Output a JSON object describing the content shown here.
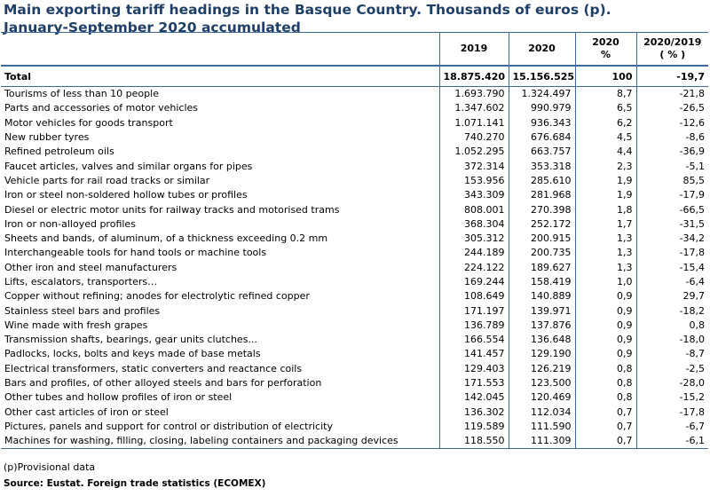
{
  "title": {
    "line1": "Main exporting tariff headings in the Basque Country. Thousands of euros (p).",
    "line2": "January-September 2020 accumulated"
  },
  "columns": {
    "c2019": "2019",
    "c2020": "2020",
    "pct_line1": "2020",
    "pct_line2": "%",
    "var_line1": "2020/2019",
    "var_line2": "( % )"
  },
  "total": {
    "label": "Total",
    "v2019": "18.875.420",
    "v2020": "15.156.525",
    "pct": "100",
    "var": "-19,7"
  },
  "rows": [
    {
      "label": "Tourisms of less than 10 people",
      "v2019": "1.693.790",
      "v2020": "1.324.497",
      "pct": "8,7",
      "var": "-21,8"
    },
    {
      "label": "Parts and accessories of motor vehicles",
      "v2019": "1.347.602",
      "v2020": "990.979",
      "pct": "6,5",
      "var": "-26,5"
    },
    {
      "label": "Motor vehicles for goods transport",
      "v2019": "1.071.141",
      "v2020": "936.343",
      "pct": "6,2",
      "var": "-12,6"
    },
    {
      "label": "New rubber tyres",
      "v2019": "740.270",
      "v2020": "676.684",
      "pct": "4,5",
      "var": "-8,6"
    },
    {
      "label": "Refined petroleum oils",
      "v2019": "1.052.295",
      "v2020": "663.757",
      "pct": "4,4",
      "var": "-36,9"
    },
    {
      "label": "Faucet articles, valves and similar organs for pipes",
      "v2019": "372.314",
      "v2020": "353.318",
      "pct": "2,3",
      "var": "-5,1"
    },
    {
      "label": "Vehicle parts for rail road tracks or similar",
      "v2019": "153.956",
      "v2020": "285.610",
      "pct": "1,9",
      "var": "85,5"
    },
    {
      "label": "Iron or steel non-soldered hollow tubes or profiles",
      "v2019": "343.309",
      "v2020": "281.968",
      "pct": "1,9",
      "var": "-17,9"
    },
    {
      "label": "Diesel or electric motor units for railway tracks and motorised trams",
      "v2019": "808.001",
      "v2020": "270.398",
      "pct": "1,8",
      "var": "-66,5"
    },
    {
      "label": "Iron or non-alloyed profiles",
      "v2019": "368.304",
      "v2020": "252.172",
      "pct": "1,7",
      "var": "-31,5"
    },
    {
      "label": "Sheets and bands, of aluminum, of a thickness exceeding 0.2 mm",
      "v2019": "305.312",
      "v2020": "200.915",
      "pct": "1,3",
      "var": "-34,2"
    },
    {
      "label": "Interchangeable tools for hand tools or machine tools",
      "v2019": "244.189",
      "v2020": "200.735",
      "pct": "1,3",
      "var": "-17,8"
    },
    {
      "label": "Other iron and steel manufacturers",
      "v2019": "224.122",
      "v2020": "189.627",
      "pct": "1,3",
      "var": "-15,4"
    },
    {
      "label": "Lifts, escalators, transporters…",
      "v2019": "169.244",
      "v2020": "158.419",
      "pct": "1,0",
      "var": "-6,4"
    },
    {
      "label": "Copper without refining; anodes for electrolytic refined copper",
      "v2019": "108.649",
      "v2020": "140.889",
      "pct": "0,9",
      "var": "29,7"
    },
    {
      "label": "Stainless steel bars and profiles",
      "v2019": "171.197",
      "v2020": "139.971",
      "pct": "0,9",
      "var": "-18,2"
    },
    {
      "label": "Wine made with fresh grapes",
      "v2019": "136.789",
      "v2020": "137.876",
      "pct": "0,9",
      "var": "0,8"
    },
    {
      "label": "Transmission shafts, bearings, gear units clutches...",
      "v2019": "166.554",
      "v2020": "136.648",
      "pct": "0,9",
      "var": "-18,0"
    },
    {
      "label": "Padlocks, locks, bolts and keys made of base metals",
      "v2019": "141.457",
      "v2020": "129.190",
      "pct": "0,9",
      "var": "-8,7"
    },
    {
      "label": "Electrical transformers, static converters and reactance coils",
      "v2019": "129.403",
      "v2020": "126.219",
      "pct": "0,8",
      "var": "-2,5"
    },
    {
      "label": "Bars and profiles, of other alloyed steels and bars for perforation",
      "v2019": "171.553",
      "v2020": "123.500",
      "pct": "0,8",
      "var": "-28,0"
    },
    {
      "label": "Other tubes and hollow profiles of iron or steel",
      "v2019": "142.045",
      "v2020": "120.469",
      "pct": "0,8",
      "var": "-15,2"
    },
    {
      "label": "Other cast articles of iron or steel",
      "v2019": "136.302",
      "v2020": "112.034",
      "pct": "0,7",
      "var": "-17,8"
    },
    {
      "label": "Pictures, panels and support for control or distribution of electricity",
      "v2019": "119.589",
      "v2020": "111.590",
      "pct": "0,7",
      "var": "-6,7"
    },
    {
      "label": "Machines for washing, filling, closing, labeling containers and packaging devices",
      "v2019": "118.550",
      "v2020": "111.309",
      "pct": "0,7",
      "var": "-6,1"
    }
  ],
  "footer": {
    "note": "(p)Provisional data",
    "source": "Source: Eustat. Foreign trade statistics (ECOMEX)"
  },
  "colors": {
    "title": "#1f3f67",
    "rule": "#3d6a98"
  }
}
